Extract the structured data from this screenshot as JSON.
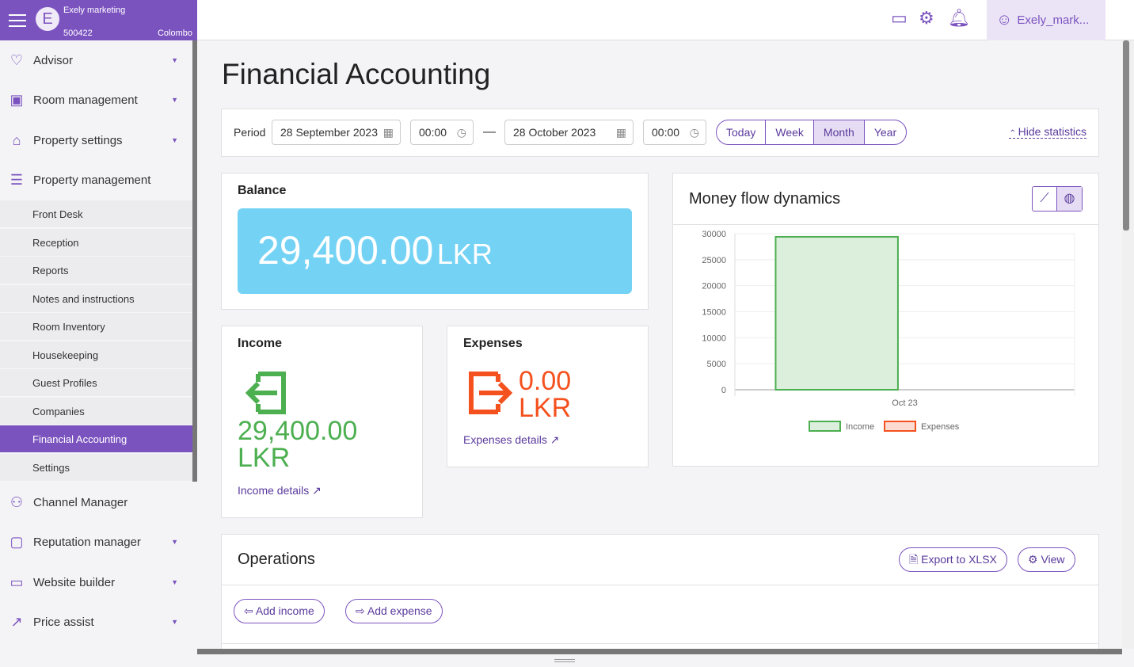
{
  "brand": {
    "name": "Exely marketing",
    "initial": "E",
    "id": "500422",
    "city": "Colombo"
  },
  "sidebar": {
    "items": [
      {
        "label": "Advisor",
        "icon": "heart-pulse-icon"
      },
      {
        "label": "Room management",
        "icon": "calendar-icon"
      },
      {
        "label": "Property settings",
        "icon": "home-icon"
      },
      {
        "label": "Property management",
        "icon": "clipboard-icon"
      }
    ],
    "sub": [
      "Front Desk",
      "Reception",
      "Reports",
      "Notes and instructions",
      "Room Inventory",
      "Housekeeping",
      "Guest Profiles",
      "Companies",
      "Financial Accounting",
      "Settings"
    ],
    "items2": [
      {
        "label": "Channel Manager",
        "icon": "sitemap-icon"
      },
      {
        "label": "Reputation manager",
        "icon": "chat-icon"
      },
      {
        "label": "Website builder",
        "icon": "monitor-icon"
      },
      {
        "label": "Price assist",
        "icon": "trend-icon"
      }
    ]
  },
  "topbar": {
    "user": "Exely_mark...",
    "icons": [
      "wallet-icon",
      "gear-icon",
      "bell-icon"
    ]
  },
  "page": {
    "title": "Financial Accounting"
  },
  "period": {
    "label": "Period",
    "from_date": "28 September 2023",
    "from_time": "00:00",
    "to_date": "28 October 2023",
    "to_time": "00:00",
    "dash": "—",
    "ranges": [
      "Today",
      "Week",
      "Month",
      "Year"
    ],
    "selected": "Month",
    "hide": "Hide statistics"
  },
  "balance": {
    "title": "Balance",
    "amount": "29,400.00",
    "currency": "LKR"
  },
  "income": {
    "title": "Income",
    "amount": "29,400.00",
    "currency": "LKR",
    "link": "Income details"
  },
  "expenses": {
    "title": "Expenses",
    "amount": "0.00",
    "currency": "LKR",
    "link": "Expenses details"
  },
  "colors": {
    "accent": "#7b53bf",
    "balance": "#74d3f5",
    "income": "#4caf50",
    "expenses": "#f4511e"
  },
  "chart_data": {
    "type": "bar",
    "title": "Money flow dynamics",
    "categories": [
      "Oct 23"
    ],
    "series": [
      {
        "name": "Income",
        "values": [
          29400
        ]
      },
      {
        "name": "Expenses",
        "values": [
          0
        ]
      }
    ],
    "ylim": [
      0,
      30000
    ],
    "yticks": [
      0,
      5000,
      10000,
      15000,
      20000,
      25000,
      30000
    ],
    "grid": true,
    "legend": "bottom"
  },
  "operations": {
    "title": "Operations",
    "export": "Export to XLSX",
    "view": "View",
    "add_income": "Add income",
    "add_expense": "Add expense"
  }
}
